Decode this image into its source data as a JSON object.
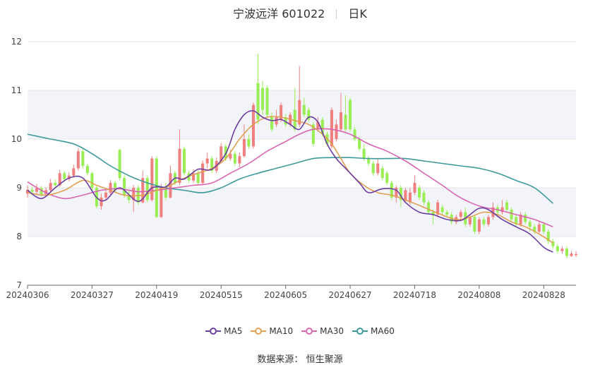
{
  "title": {
    "stock": "宁波远洋 601022",
    "period": "日K"
  },
  "source": {
    "label": "数据来源：",
    "value": "恒生聚源"
  },
  "colors": {
    "up": "#f08080",
    "down": "#99ee55",
    "ma5": "#6b3fa0",
    "ma10": "#e0a050",
    "ma30": "#d966b0",
    "ma60": "#3d9a9a",
    "band": "#f3f4fa",
    "grid": "#e6e6e6"
  },
  "chart_data": {
    "type": "candlestick",
    "y_ticks": [
      "7",
      "8",
      "9",
      "10",
      "11",
      "12"
    ],
    "ylim": [
      7,
      12
    ],
    "x_tick_labels": [
      "20240306",
      "20240327",
      "20240419",
      "20240515",
      "20240605",
      "20240627",
      "20240718",
      "20240808",
      "20240828"
    ],
    "x_tick_index": [
      0,
      14,
      28,
      42,
      56,
      70,
      84,
      98,
      112
    ],
    "legend": [
      {
        "key": "ma5",
        "label": "MA5"
      },
      {
        "key": "ma10",
        "label": "MA10"
      },
      {
        "key": "ma30",
        "label": "MA30"
      },
      {
        "key": "ma60",
        "label": "MA60"
      }
    ],
    "candles": [
      {
        "o": 8.88,
        "c": 8.96,
        "h": 9.05,
        "l": 8.8
      },
      {
        "o": 8.96,
        "c": 8.92,
        "h": 9.02,
        "l": 8.85
      },
      {
        "o": 8.92,
        "c": 8.99,
        "h": 9.08,
        "l": 8.88
      },
      {
        "o": 8.99,
        "c": 8.87,
        "h": 9.04,
        "l": 8.82
      },
      {
        "o": 8.87,
        "c": 8.95,
        "h": 9.01,
        "l": 8.83
      },
      {
        "o": 8.95,
        "c": 9.1,
        "h": 9.18,
        "l": 8.92
      },
      {
        "o": 9.1,
        "c": 9.05,
        "h": 9.17,
        "l": 9.0
      },
      {
        "o": 9.05,
        "c": 9.3,
        "h": 9.37,
        "l": 9.02
      },
      {
        "o": 9.3,
        "c": 9.18,
        "h": 9.35,
        "l": 9.12
      },
      {
        "o": 9.18,
        "c": 9.25,
        "h": 9.32,
        "l": 9.13
      },
      {
        "o": 9.25,
        "c": 9.4,
        "h": 9.48,
        "l": 9.2
      },
      {
        "o": 9.4,
        "c": 9.75,
        "h": 9.82,
        "l": 9.35
      },
      {
        "o": 9.75,
        "c": 9.45,
        "h": 9.8,
        "l": 9.4
      },
      {
        "o": 9.45,
        "c": 9.3,
        "h": 9.5,
        "l": 9.25
      },
      {
        "o": 9.3,
        "c": 9.0,
        "h": 9.33,
        "l": 8.95
      },
      {
        "o": 9.0,
        "c": 8.62,
        "h": 9.05,
        "l": 8.58
      },
      {
        "o": 8.62,
        "c": 8.8,
        "h": 8.88,
        "l": 8.55
      },
      {
        "o": 8.8,
        "c": 8.9,
        "h": 9.0,
        "l": 8.76
      },
      {
        "o": 8.9,
        "c": 9.1,
        "h": 9.16,
        "l": 8.85
      },
      {
        "o": 9.1,
        "c": 8.95,
        "h": 9.15,
        "l": 8.9
      },
      {
        "o": 9.78,
        "c": 9.2,
        "h": 9.8,
        "l": 9.15
      },
      {
        "o": 9.2,
        "c": 8.85,
        "h": 9.25,
        "l": 8.8
      },
      {
        "o": 8.85,
        "c": 8.75,
        "h": 8.95,
        "l": 8.68
      },
      {
        "o": 8.75,
        "c": 9.0,
        "h": 9.06,
        "l": 8.5
      },
      {
        "o": 9.0,
        "c": 8.7,
        "h": 9.05,
        "l": 8.65
      },
      {
        "o": 8.7,
        "c": 9.2,
        "h": 9.35,
        "l": 8.68
      },
      {
        "o": 9.2,
        "c": 8.75,
        "h": 9.25,
        "l": 8.7
      },
      {
        "o": 8.75,
        "c": 9.6,
        "h": 9.65,
        "l": 8.72
      },
      {
        "o": 9.6,
        "c": 8.4,
        "h": 9.65,
        "l": 8.38
      },
      {
        "o": 8.4,
        "c": 9.0,
        "h": 9.08,
        "l": 8.38
      },
      {
        "o": 9.0,
        "c": 8.8,
        "h": 9.1,
        "l": 8.75
      },
      {
        "o": 8.8,
        "c": 9.3,
        "h": 9.46,
        "l": 8.78
      },
      {
        "o": 9.3,
        "c": 9.1,
        "h": 9.35,
        "l": 9.05
      },
      {
        "o": 9.1,
        "c": 9.8,
        "h": 10.2,
        "l": 9.05
      },
      {
        "o": 9.8,
        "c": 9.3,
        "h": 9.85,
        "l": 9.25
      },
      {
        "o": 9.3,
        "c": 9.15,
        "h": 9.35,
        "l": 9.1
      },
      {
        "o": 9.15,
        "c": 9.3,
        "h": 9.38,
        "l": 9.1
      },
      {
        "o": 9.3,
        "c": 9.1,
        "h": 9.35,
        "l": 9.05
      },
      {
        "o": 9.1,
        "c": 9.5,
        "h": 9.56,
        "l": 9.05
      },
      {
        "o": 9.5,
        "c": 9.6,
        "h": 9.72,
        "l": 9.4
      },
      {
        "o": 9.6,
        "c": 9.35,
        "h": 9.65,
        "l": 9.3
      },
      {
        "o": 9.35,
        "c": 9.55,
        "h": 9.62,
        "l": 9.3
      },
      {
        "o": 9.55,
        "c": 9.85,
        "h": 9.92,
        "l": 9.5
      },
      {
        "o": 9.85,
        "c": 9.6,
        "h": 9.9,
        "l": 9.55
      },
      {
        "o": 9.6,
        "c": 9.7,
        "h": 9.78,
        "l": 9.55
      },
      {
        "o": 9.7,
        "c": 9.5,
        "h": 9.75,
        "l": 9.45
      },
      {
        "o": 9.5,
        "c": 9.65,
        "h": 9.73,
        "l": 9.42
      },
      {
        "o": 9.65,
        "c": 10.0,
        "h": 10.3,
        "l": 9.62
      },
      {
        "o": 10.0,
        "c": 9.85,
        "h": 10.1,
        "l": 9.8
      },
      {
        "o": 9.85,
        "c": 10.7,
        "h": 10.75,
        "l": 9.8
      },
      {
        "o": 11.15,
        "c": 10.4,
        "h": 11.75,
        "l": 10.3
      },
      {
        "o": 11.05,
        "c": 10.6,
        "h": 11.2,
        "l": 10.5
      },
      {
        "o": 11.05,
        "c": 10.5,
        "h": 11.1,
        "l": 10.45
      },
      {
        "o": 10.45,
        "c": 10.2,
        "h": 10.55,
        "l": 10.15
      },
      {
        "o": 10.3,
        "c": 10.45,
        "h": 10.6,
        "l": 10.25
      },
      {
        "o": 10.4,
        "c": 10.7,
        "h": 10.75,
        "l": 10.35
      },
      {
        "o": 10.45,
        "c": 10.3,
        "h": 10.52,
        "l": 10.25
      },
      {
        "o": 10.3,
        "c": 10.5,
        "h": 10.55,
        "l": 10.25
      },
      {
        "o": 10.6,
        "c": 10.2,
        "h": 11.05,
        "l": 10.15
      },
      {
        "o": 10.3,
        "c": 10.8,
        "h": 11.5,
        "l": 10.25
      },
      {
        "o": 10.7,
        "c": 10.5,
        "h": 10.85,
        "l": 10.45
      },
      {
        "o": 10.6,
        "c": 10.4,
        "h": 10.65,
        "l": 10.35
      },
      {
        "o": 10.3,
        "c": 9.9,
        "h": 10.35,
        "l": 9.85
      },
      {
        "o": 10.2,
        "c": 10.35,
        "h": 10.45,
        "l": 10.15
      },
      {
        "o": 10.4,
        "c": 10.1,
        "h": 10.45,
        "l": 10.05
      },
      {
        "o": 10.1,
        "c": 9.9,
        "h": 10.15,
        "l": 9.85
      },
      {
        "o": 9.85,
        "c": 10.6,
        "h": 10.65,
        "l": 9.8
      },
      {
        "o": 10.0,
        "c": 10.3,
        "h": 10.4,
        "l": 9.95
      },
      {
        "o": 10.2,
        "c": 10.55,
        "h": 10.95,
        "l": 10.15
      },
      {
        "o": 10.5,
        "c": 10.2,
        "h": 10.9,
        "l": 10.15
      },
      {
        "o": 10.8,
        "c": 10.2,
        "h": 10.85,
        "l": 10.15
      },
      {
        "o": 10.2,
        "c": 10.0,
        "h": 10.25,
        "l": 9.95
      },
      {
        "o": 10.0,
        "c": 9.8,
        "h": 10.05,
        "l": 9.75
      },
      {
        "o": 9.8,
        "c": 9.6,
        "h": 9.9,
        "l": 9.55
      },
      {
        "o": 9.6,
        "c": 9.5,
        "h": 9.65,
        "l": 9.45
      },
      {
        "o": 9.5,
        "c": 9.3,
        "h": 9.55,
        "l": 9.25
      },
      {
        "o": 9.3,
        "c": 9.5,
        "h": 9.6,
        "l": 9.25
      },
      {
        "o": 9.4,
        "c": 9.2,
        "h": 9.45,
        "l": 9.15
      },
      {
        "o": 9.3,
        "c": 9.1,
        "h": 9.35,
        "l": 9.05
      },
      {
        "o": 9.1,
        "c": 8.8,
        "h": 9.15,
        "l": 8.75
      },
      {
        "o": 8.8,
        "c": 9.0,
        "h": 9.05,
        "l": 8.7
      },
      {
        "o": 9.0,
        "c": 8.75,
        "h": 9.05,
        "l": 8.6
      },
      {
        "o": 8.75,
        "c": 8.95,
        "h": 9.0,
        "l": 8.7
      },
      {
        "o": 8.7,
        "c": 8.9,
        "h": 9.0,
        "l": 8.65
      },
      {
        "o": 8.9,
        "c": 9.1,
        "h": 9.25,
        "l": 8.85
      },
      {
        "o": 9.0,
        "c": 8.8,
        "h": 9.05,
        "l": 8.75
      },
      {
        "o": 8.9,
        "c": 8.7,
        "h": 8.95,
        "l": 8.65
      },
      {
        "o": 8.7,
        "c": 8.5,
        "h": 8.75,
        "l": 8.45
      },
      {
        "o": 8.5,
        "c": 8.45,
        "h": 8.55,
        "l": 8.25
      },
      {
        "o": 8.45,
        "c": 8.7,
        "h": 8.75,
        "l": 8.4
      },
      {
        "o": 8.6,
        "c": 8.5,
        "h": 8.65,
        "l": 8.45
      },
      {
        "o": 8.5,
        "c": 8.45,
        "h": 8.55,
        "l": 8.4
      },
      {
        "o": 8.45,
        "c": 8.3,
        "h": 8.5,
        "l": 8.25
      },
      {
        "o": 8.3,
        "c": 8.4,
        "h": 8.45,
        "l": 8.25
      },
      {
        "o": 8.4,
        "c": 8.5,
        "h": 8.55,
        "l": 8.35
      },
      {
        "o": 8.5,
        "c": 8.25,
        "h": 8.6,
        "l": 8.2
      },
      {
        "o": 8.25,
        "c": 8.4,
        "h": 8.45,
        "l": 8.2
      },
      {
        "o": 8.4,
        "c": 8.1,
        "h": 8.45,
        "l": 8.05
      },
      {
        "o": 8.1,
        "c": 8.35,
        "h": 8.4,
        "l": 8.05
      },
      {
        "o": 8.35,
        "c": 8.25,
        "h": 8.4,
        "l": 8.2
      },
      {
        "o": 8.25,
        "c": 8.4,
        "h": 8.45,
        "l": 8.2
      },
      {
        "o": 8.4,
        "c": 8.6,
        "h": 8.7,
        "l": 8.35
      },
      {
        "o": 8.6,
        "c": 8.5,
        "h": 8.65,
        "l": 8.45
      },
      {
        "o": 8.5,
        "c": 8.6,
        "h": 8.75,
        "l": 8.45
      },
      {
        "o": 8.7,
        "c": 8.55,
        "h": 8.75,
        "l": 8.5
      },
      {
        "o": 8.55,
        "c": 8.35,
        "h": 8.6,
        "l": 8.3
      },
      {
        "o": 8.4,
        "c": 8.25,
        "h": 8.45,
        "l": 8.2
      },
      {
        "o": 8.25,
        "c": 8.45,
        "h": 8.5,
        "l": 8.2
      },
      {
        "o": 8.45,
        "c": 8.3,
        "h": 8.5,
        "l": 8.25
      },
      {
        "o": 8.3,
        "c": 8.2,
        "h": 8.35,
        "l": 8.1
      },
      {
        "o": 8.2,
        "c": 8.1,
        "h": 8.25,
        "l": 8.05
      },
      {
        "o": 8.1,
        "c": 8.25,
        "h": 8.3,
        "l": 8.05
      },
      {
        "o": 8.25,
        "c": 8.1,
        "h": 8.3,
        "l": 8.05
      },
      {
        "o": 8.1,
        "c": 7.9,
        "h": 8.15,
        "l": 7.85
      },
      {
        "o": 7.9,
        "c": 7.8,
        "h": 7.95,
        "l": 7.75
      },
      {
        "o": 7.8,
        "c": 7.7,
        "h": 7.85,
        "l": 7.65
      },
      {
        "o": 7.7,
        "c": 7.75,
        "h": 7.8,
        "l": 7.65
      },
      {
        "o": 7.75,
        "c": 7.6,
        "h": 7.8,
        "l": 7.55
      },
      {
        "o": 7.6,
        "c": 7.65,
        "h": 7.7,
        "l": 7.58
      },
      {
        "o": 7.62,
        "c": 7.64,
        "h": 7.7,
        "l": 7.58
      }
    ],
    "ma_series": {
      "ma5": [
        [
          0,
          8.95
        ],
        [
          3,
          8.78
        ],
        [
          6,
          9.0
        ],
        [
          9,
          9.2
        ],
        [
          12,
          9.2
        ],
        [
          15,
          8.8
        ],
        [
          17,
          8.75
        ],
        [
          20,
          9.0
        ],
        [
          24,
          8.72
        ],
        [
          27,
          9.0
        ],
        [
          30,
          9.02
        ],
        [
          32,
          9.2
        ],
        [
          34,
          9.18
        ],
        [
          37,
          9.38
        ],
        [
          40,
          9.38
        ],
        [
          43,
          9.7
        ],
        [
          45,
          10.2
        ],
        [
          47,
          10.5
        ],
        [
          49,
          10.58
        ],
        [
          51,
          10.45
        ],
        [
          53,
          10.38
        ],
        [
          55,
          10.4
        ],
        [
          57,
          10.3
        ],
        [
          59,
          10.2
        ],
        [
          61,
          10.45
        ],
        [
          63,
          10.35
        ],
        [
          65,
          9.9
        ],
        [
          67,
          9.6
        ],
        [
          69,
          9.4
        ],
        [
          72,
          9.1
        ],
        [
          74,
          8.9
        ],
        [
          77,
          8.98
        ],
        [
          80,
          8.95
        ],
        [
          82,
          8.7
        ],
        [
          85,
          8.5
        ],
        [
          88,
          8.45
        ],
        [
          91,
          8.35
        ],
        [
          94,
          8.33
        ],
        [
          96,
          8.45
        ],
        [
          98,
          8.58
        ],
        [
          100,
          8.55
        ],
        [
          103,
          8.35
        ],
        [
          106,
          8.2
        ],
        [
          109,
          8.05
        ],
        [
          112,
          7.78
        ],
        [
          114,
          7.68
        ]
      ],
      "ma10": [
        [
          0,
          8.9
        ],
        [
          4,
          8.85
        ],
        [
          8,
          8.95
        ],
        [
          12,
          9.15
        ],
        [
          15,
          9.05
        ],
        [
          18,
          8.95
        ],
        [
          21,
          8.85
        ],
        [
          25,
          8.85
        ],
        [
          28,
          8.95
        ],
        [
          31,
          9.05
        ],
        [
          34,
          9.2
        ],
        [
          37,
          9.3
        ],
        [
          40,
          9.4
        ],
        [
          43,
          9.6
        ],
        [
          46,
          10.0
        ],
        [
          49,
          10.3
        ],
        [
          52,
          10.45
        ],
        [
          55,
          10.45
        ],
        [
          58,
          10.38
        ],
        [
          61,
          10.3
        ],
        [
          64,
          10.1
        ],
        [
          66,
          9.9
        ],
        [
          68,
          9.6
        ],
        [
          70,
          9.3
        ],
        [
          73,
          9.05
        ],
        [
          76,
          8.9
        ],
        [
          79,
          8.85
        ],
        [
          82,
          8.75
        ],
        [
          86,
          8.6
        ],
        [
          89,
          8.48
        ],
        [
          93,
          8.35
        ],
        [
          96,
          8.4
        ],
        [
          99,
          8.5
        ],
        [
          102,
          8.45
        ],
        [
          105,
          8.3
        ],
        [
          108,
          8.2
        ],
        [
          111,
          8.05
        ],
        [
          114,
          7.87
        ]
      ],
      "ma30": [
        [
          0,
          9.12
        ],
        [
          4,
          8.9
        ],
        [
          8,
          8.78
        ],
        [
          12,
          8.85
        ],
        [
          16,
          8.95
        ],
        [
          20,
          8.98
        ],
        [
          24,
          8.92
        ],
        [
          28,
          8.95
        ],
        [
          32,
          9.0
        ],
        [
          36,
          9.05
        ],
        [
          40,
          9.1
        ],
        [
          44,
          9.3
        ],
        [
          48,
          9.5
        ],
        [
          52,
          9.75
        ],
        [
          56,
          9.95
        ],
        [
          59,
          10.1
        ],
        [
          62,
          10.2
        ],
        [
          66,
          10.2
        ],
        [
          70,
          10.1
        ],
        [
          74,
          9.9
        ],
        [
          78,
          9.75
        ],
        [
          82,
          9.55
        ],
        [
          86,
          9.3
        ],
        [
          90,
          9.05
        ],
        [
          93,
          8.85
        ],
        [
          96,
          8.7
        ],
        [
          99,
          8.6
        ],
        [
          102,
          8.55
        ],
        [
          106,
          8.45
        ],
        [
          110,
          8.35
        ],
        [
          114,
          8.2
        ]
      ],
      "ma60": [
        [
          0,
          10.1
        ],
        [
          5,
          10.0
        ],
        [
          10,
          9.9
        ],
        [
          14,
          9.7
        ],
        [
          18,
          9.45
        ],
        [
          22,
          9.25
        ],
        [
          26,
          9.1
        ],
        [
          30,
          9.0
        ],
        [
          34,
          8.95
        ],
        [
          38,
          8.9
        ],
        [
          42,
          9.0
        ],
        [
          46,
          9.18
        ],
        [
          50,
          9.3
        ],
        [
          54,
          9.4
        ],
        [
          58,
          9.5
        ],
        [
          62,
          9.6
        ],
        [
          66,
          9.62
        ],
        [
          70,
          9.62
        ],
        [
          74,
          9.6
        ],
        [
          78,
          9.6
        ],
        [
          82,
          9.6
        ],
        [
          86,
          9.55
        ],
        [
          90,
          9.5
        ],
        [
          94,
          9.45
        ],
        [
          98,
          9.4
        ],
        [
          102,
          9.3
        ],
        [
          106,
          9.15
        ],
        [
          110,
          9.0
        ],
        [
          114,
          8.68
        ]
      ]
    }
  }
}
